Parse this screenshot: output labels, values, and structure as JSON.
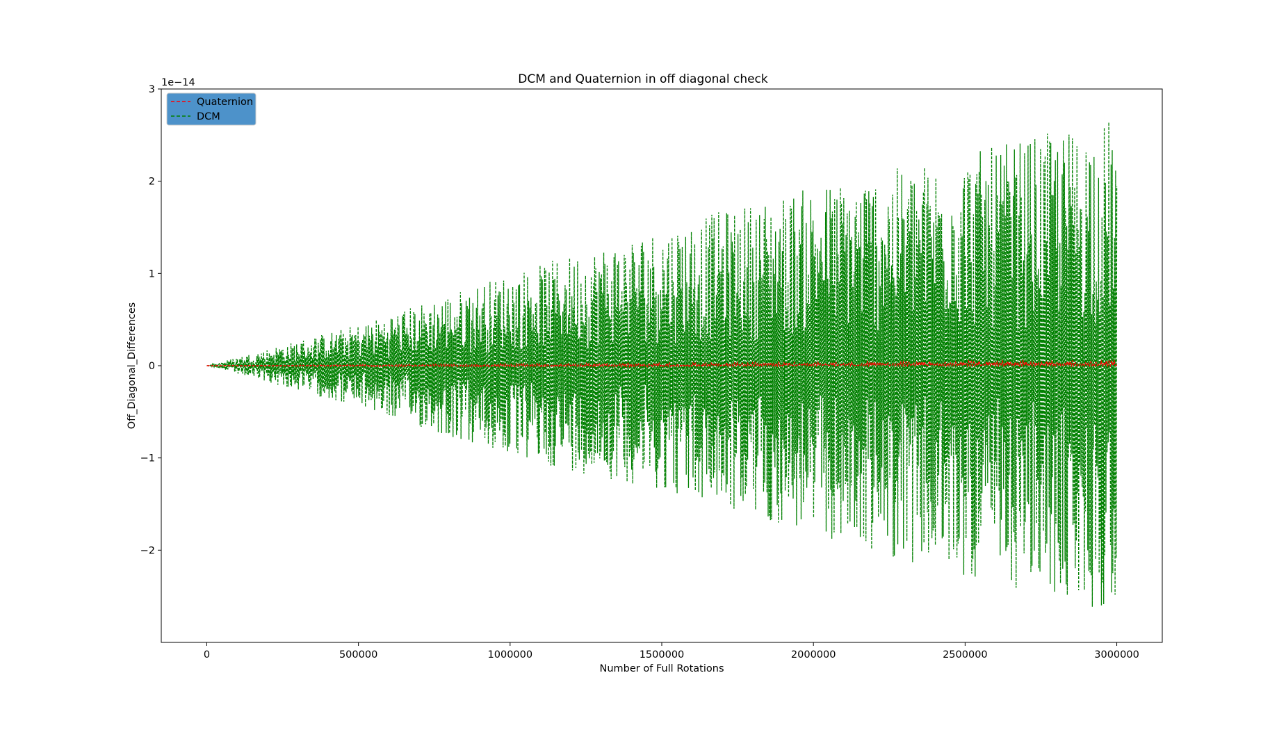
{
  "chart_data": {
    "type": "line",
    "title": "DCM and Quaternion in off diagonal check",
    "xlabel": "Number of Full Rotations",
    "ylabel": "Off_Diagonal_Differences",
    "y_offset_text": "1e−14",
    "xlim": [
      -150000,
      3150000
    ],
    "ylim": [
      -3e-14,
      3e-14
    ],
    "x_ticks": [
      0,
      500000,
      1000000,
      1500000,
      2000000,
      2500000,
      3000000
    ],
    "x_tick_labels": [
      "0",
      "500000",
      "1000000",
      "1500000",
      "2000000",
      "2500000",
      "3000000"
    ],
    "y_ticks": [
      -2e-14,
      -1e-14,
      0,
      1e-14,
      2e-14,
      3e-14
    ],
    "y_tick_labels": [
      "−2",
      "−1",
      "0",
      "1",
      "2",
      "3"
    ],
    "grid": false,
    "legend_position": "top-left",
    "series": [
      {
        "name": "Quaternion",
        "color": "#ff0000",
        "style": "dashed",
        "x": [
          0,
          500000,
          1000000,
          1500000,
          2000000,
          2500000,
          3000000
        ],
        "y_envelope_upper": [
          0,
          1e-16,
          2e-16,
          3e-16,
          4e-16,
          5e-16,
          6e-16
        ],
        "y_envelope_lower": [
          0,
          -1e-16,
          -1e-16,
          -1e-16,
          0,
          0,
          0
        ]
      },
      {
        "name": "DCM",
        "color": "#008000",
        "style": "dashed",
        "x": [
          0,
          500000,
          1000000,
          1500000,
          2000000,
          2500000,
          3000000
        ],
        "y_envelope_upper": [
          0,
          4.5e-15,
          1e-14,
          1.5e-14,
          1.95e-14,
          2.3e-14,
          2.7e-14
        ],
        "y_envelope_lower": [
          0,
          -4.5e-15,
          -1e-14,
          -1.35e-14,
          -1.85e-14,
          -2.3e-14,
          -2.7e-14
        ]
      }
    ]
  }
}
